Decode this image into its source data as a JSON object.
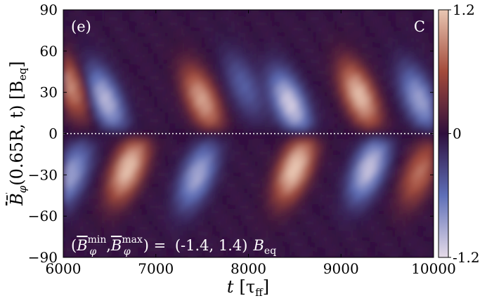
{
  "chart_data": {
    "type": "heatmap",
    "panel_label": "(e)",
    "corner_label": "C",
    "xlabel": "t [τ_ff]",
    "xlabel_main": "t",
    "xlabel_unit": "[τ",
    "xlabel_unit_sub": "ff",
    "xlabel_unit_close": "]",
    "ylabel": "B̄_φ(0.65R, t) [B_eq]",
    "ylabel_main": "B̄",
    "ylabel_sub": "φ",
    "ylabel_arg": "(0.65R, t) [B",
    "ylabel_arg_sub": "eq",
    "ylabel_close": "]",
    "xlim": [
      6000,
      10000
    ],
    "ylim": [
      -90,
      90
    ],
    "xticks": [
      "6000",
      "7000",
      "8000",
      "9000",
      "10000"
    ],
    "yticks": [
      "90",
      "60",
      "30",
      "0",
      "−30",
      "−60",
      "−90"
    ],
    "colorbar": {
      "min": -1.2,
      "max": 1.2,
      "ticks": [
        "1.2",
        "0",
        "-1.2"
      ],
      "colormap": "twilight_shifted",
      "colors": [
        "#e6dbe8",
        "#5e6fb8",
        "#2f0f3d",
        "#a34a3a",
        "#e9c7b3"
      ]
    },
    "equator_line": {
      "y": 0,
      "style": "dotted",
      "color": "#ffffff"
    },
    "annotation": {
      "prefix": "(",
      "b_min_sup": "min",
      "sub": "φ",
      "b_max_sup": "max",
      "mid": ") = ",
      "values": "(-1.4, 1.4)",
      "unit": "B",
      "unit_sub": "eq"
    },
    "field": {
      "description_units": "x in tau_ff, y in degrees latitude, value in B_eq",
      "north_blobs": [
        {
          "t": 6080,
          "lat": 35,
          "val": 0.95
        },
        {
          "t": 6450,
          "lat": 25,
          "val": -1.05
        },
        {
          "t": 7500,
          "lat": 25,
          "val": 1.05
        },
        {
          "t": 7950,
          "lat": 35,
          "val": -0.5
        },
        {
          "t": 8450,
          "lat": 22,
          "val": -1.15
        },
        {
          "t": 9200,
          "lat": 28,
          "val": 1.2
        },
        {
          "t": 9850,
          "lat": 25,
          "val": -0.9
        }
      ],
      "south_blobs": [
        {
          "t": 6080,
          "lat": -30,
          "val": -0.9
        },
        {
          "t": 6700,
          "lat": -25,
          "val": 1.25
        },
        {
          "t": 7450,
          "lat": -30,
          "val": -0.95
        },
        {
          "t": 8500,
          "lat": -25,
          "val": 1.3
        },
        {
          "t": 9300,
          "lat": -25,
          "val": -1.1
        },
        {
          "t": 9850,
          "lat": -28,
          "val": 0.8
        }
      ]
    }
  }
}
